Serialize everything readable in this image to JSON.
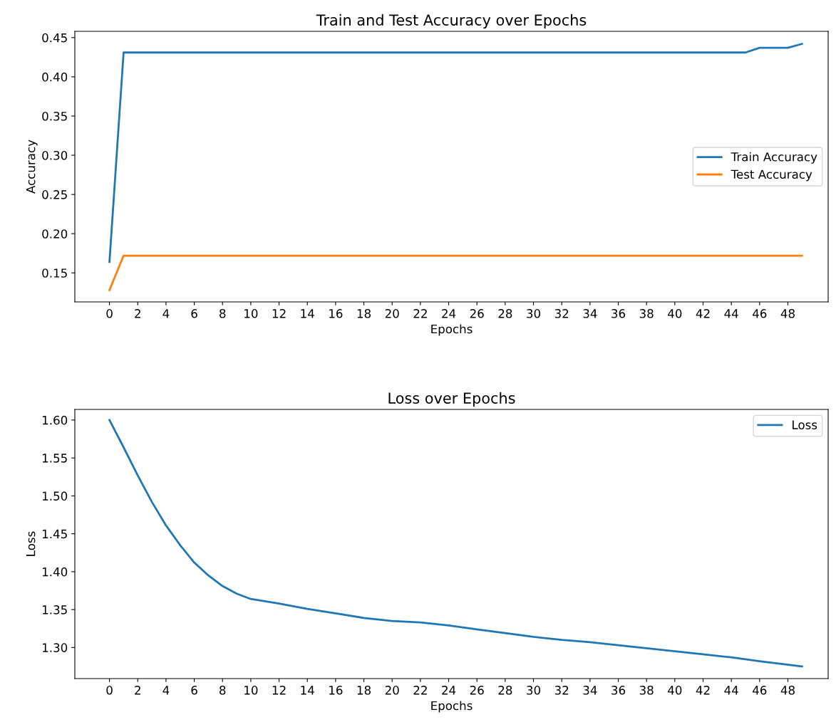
{
  "chart_data": [
    {
      "type": "line",
      "title": "Train and Test Accuracy over Epochs",
      "xlabel": "Epochs",
      "ylabel": "Accuracy",
      "series": [
        {
          "name": "Train Accuracy",
          "color": "#1f77b4",
          "x": [
            0,
            1,
            45,
            46,
            48,
            49
          ],
          "values": [
            0.164,
            0.431,
            0.431,
            0.437,
            0.437,
            0.442
          ]
        },
        {
          "name": "Test Accuracy",
          "color": "#ff7f0e",
          "x": [
            0,
            1,
            49
          ],
          "values": [
            0.128,
            0.172,
            0.172
          ]
        }
      ],
      "xlim": [
        -2.45,
        50.85
      ],
      "xticks": [
        0,
        2,
        4,
        6,
        8,
        10,
        12,
        14,
        16,
        18,
        20,
        22,
        24,
        26,
        28,
        30,
        32,
        34,
        36,
        38,
        40,
        42,
        44,
        46,
        48
      ],
      "ylim": [
        0.113,
        0.458
      ],
      "yticks": [
        {
          "value": 0.15,
          "label": "0.15"
        },
        {
          "value": 0.2,
          "label": "0.20"
        },
        {
          "value": 0.25,
          "label": "0.25"
        },
        {
          "value": 0.3,
          "label": "0.30"
        },
        {
          "value": 0.35,
          "label": "0.35"
        },
        {
          "value": 0.4,
          "label": "0.40"
        },
        {
          "value": 0.45,
          "label": "0.45"
        }
      ],
      "legend": "right"
    },
    {
      "type": "line",
      "title": "Loss over Epochs",
      "xlabel": "Epochs",
      "ylabel": "Loss",
      "series": [
        {
          "name": "Loss",
          "color": "#1f77b4",
          "x": [
            0,
            1,
            2,
            3,
            4,
            5,
            6,
            7,
            8,
            9,
            10,
            12,
            14,
            16,
            18,
            20,
            22,
            24,
            26,
            28,
            30,
            32,
            34,
            36,
            38,
            40,
            42,
            44,
            46,
            49
          ],
          "values": [
            1.6,
            1.564,
            1.527,
            1.492,
            1.461,
            1.435,
            1.412,
            1.395,
            1.381,
            1.371,
            1.364,
            1.358,
            1.351,
            1.345,
            1.339,
            1.335,
            1.333,
            1.329,
            1.324,
            1.319,
            1.314,
            1.31,
            1.307,
            1.303,
            1.299,
            1.295,
            1.291,
            1.287,
            1.282,
            1.275
          ]
        }
      ],
      "xlim": [
        -2.45,
        50.85
      ],
      "xticks": [
        0,
        2,
        4,
        6,
        8,
        10,
        12,
        14,
        16,
        18,
        20,
        22,
        24,
        26,
        28,
        30,
        32,
        34,
        36,
        38,
        40,
        42,
        44,
        46,
        48
      ],
      "ylim": [
        1.259,
        1.614
      ],
      "yticks": [
        {
          "value": 1.3,
          "label": "1.30"
        },
        {
          "value": 1.35,
          "label": "1.35"
        },
        {
          "value": 1.4,
          "label": "1.40"
        },
        {
          "value": 1.45,
          "label": "1.45"
        },
        {
          "value": 1.5,
          "label": "1.50"
        },
        {
          "value": 1.55,
          "label": "1.55"
        },
        {
          "value": 1.6,
          "label": "1.60"
        }
      ],
      "legend": "top right"
    }
  ]
}
